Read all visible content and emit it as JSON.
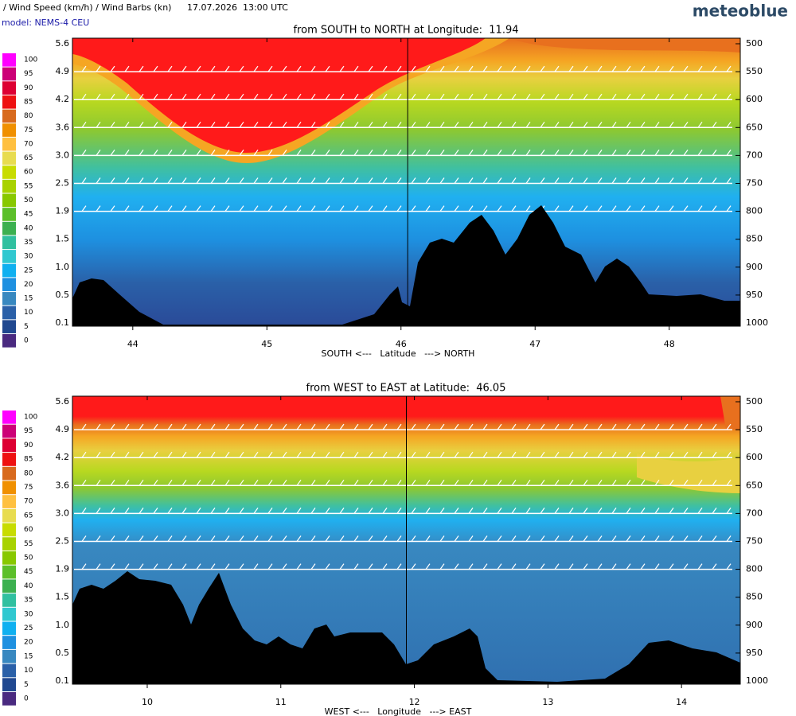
{
  "header": {
    "title": "/ Wind Speed (km/h) / Wind Barbs (kn)",
    "time": "17.07.2026  13:00 UTC",
    "model": "model: NEMS-4 CEU",
    "brand": "meteoblue"
  },
  "colorbar": {
    "levels": [
      100,
      95,
      90,
      85,
      80,
      75,
      70,
      65,
      60,
      55,
      50,
      45,
      40,
      35,
      30,
      25,
      20,
      15,
      10,
      5,
      0
    ],
    "colors": [
      "#ff00ff",
      "#cc0077",
      "#dd0033",
      "#ee1111",
      "#d86a1e",
      "#f09000",
      "#ffc040",
      "#e8dc50",
      "#c8dc00",
      "#a8d200",
      "#88c800",
      "#5cbf2a",
      "#3cb050",
      "#30c0a0",
      "#30c8d0",
      "#10b0f0",
      "#1e90e0",
      "#3888c0",
      "#2a60a8",
      "#204890",
      "#4a2a80"
    ]
  },
  "chart_data": [
    {
      "type": "cross-section",
      "title": "from SOUTH to NORTH at Longitude:  11.94",
      "xlabel": "SOUTH <---   Latitude   ---> NORTH",
      "xlim": [
        43.55,
        48.53
      ],
      "xticks": [
        44,
        45,
        46,
        47,
        48
      ],
      "marker": 46.05,
      "ylim": [
        1000,
        500
      ],
      "yticks": [
        500,
        550,
        600,
        650,
        700,
        750,
        800,
        850,
        900,
        950,
        1000
      ],
      "height_labels": [
        "5.6",
        "4.9",
        "4.2",
        "3.6",
        "3.0",
        "2.5",
        "1.9",
        "1.5",
        "1.0",
        "0.5",
        "0.1"
      ]
    },
    {
      "type": "cross-section",
      "title": "from WEST to EAST at Latitude:  46.05",
      "xlabel": "WEST <---   Longitude   ---> EAST",
      "xlim": [
        9.44,
        14.44
      ],
      "xticks": [
        10,
        11,
        12,
        13,
        14
      ],
      "marker": 11.94,
      "ylim": [
        1000,
        500
      ],
      "yticks": [
        500,
        550,
        600,
        650,
        700,
        750,
        800,
        850,
        900,
        950,
        1000
      ],
      "height_labels": [
        "5.6",
        "4.9",
        "4.2",
        "3.6",
        "3.0",
        "2.5",
        "1.9",
        "1.5",
        "1.0",
        "0.5",
        "0.1"
      ]
    }
  ]
}
